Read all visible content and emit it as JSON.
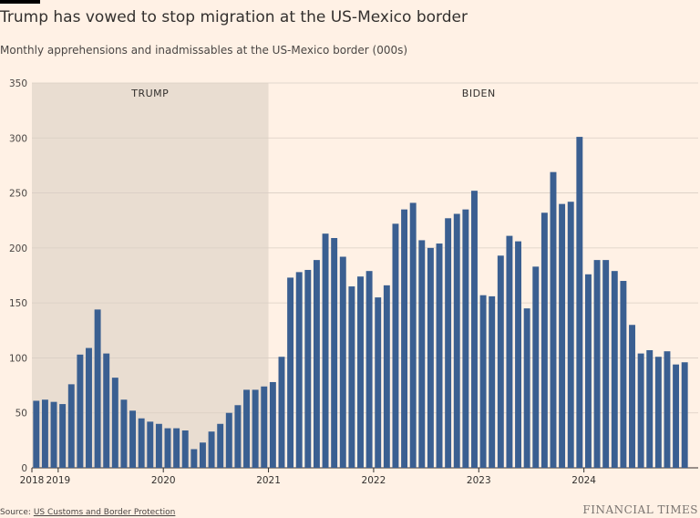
{
  "header": {
    "title": "Trump has vowed to stop migration at the US-Mexico border",
    "subtitle": "Monthly apprehensions and inadmissables at the US-Mexico border (000s)"
  },
  "footer": {
    "source_prefix": "Source: ",
    "source_name": "US Customs and Border Protection",
    "brand": "FINANCIAL TIMES"
  },
  "colors": {
    "background": "#fff1e5",
    "bar": "#3a5f91",
    "shade": "#e9ddd1",
    "grid": "#d9cec4",
    "text": "#33302e"
  },
  "chart_data": {
    "type": "bar",
    "title": "Trump has vowed to stop migration at the US-Mexico border",
    "ylabel": "Monthly apprehensions and inadmissables at the US-Mexico border (000s)",
    "xlabel": "",
    "ylim": [
      0,
      350
    ],
    "yticks": [
      0,
      50,
      100,
      150,
      200,
      250,
      300,
      350
    ],
    "grid": true,
    "start": "2018-10",
    "xtick_labels": [
      {
        "label": "2018",
        "index": 0
      },
      {
        "label": "2019",
        "index": 3
      },
      {
        "label": "2020",
        "index": 15
      },
      {
        "label": "2021",
        "index": 27
      },
      {
        "label": "2022",
        "index": 39
      },
      {
        "label": "2023",
        "index": 51
      },
      {
        "label": "2024",
        "index": 63
      }
    ],
    "shaded_regions": [
      {
        "label": "TRUMP",
        "start_index": 0,
        "end_index": 27,
        "shaded": true
      },
      {
        "label": "BIDEN",
        "start_index": 27,
        "end_index": 75,
        "shaded": false
      }
    ],
    "values": [
      61,
      62,
      60,
      58,
      76,
      103,
      109,
      144,
      104,
      82,
      62,
      52,
      45,
      42,
      40,
      36,
      36,
      34,
      17,
      23,
      33,
      40,
      50,
      57,
      71,
      71,
      74,
      78,
      101,
      173,
      178,
      180,
      189,
      213,
      209,
      192,
      165,
      174,
      179,
      155,
      166,
      222,
      235,
      241,
      207,
      200,
      204,
      227,
      231,
      235,
      252,
      157,
      156,
      193,
      211,
      206,
      145,
      183,
      232,
      269,
      240,
      242,
      301,
      176,
      189,
      189,
      179,
      170,
      130,
      104,
      107,
      101,
      106,
      94,
      96
    ]
  }
}
